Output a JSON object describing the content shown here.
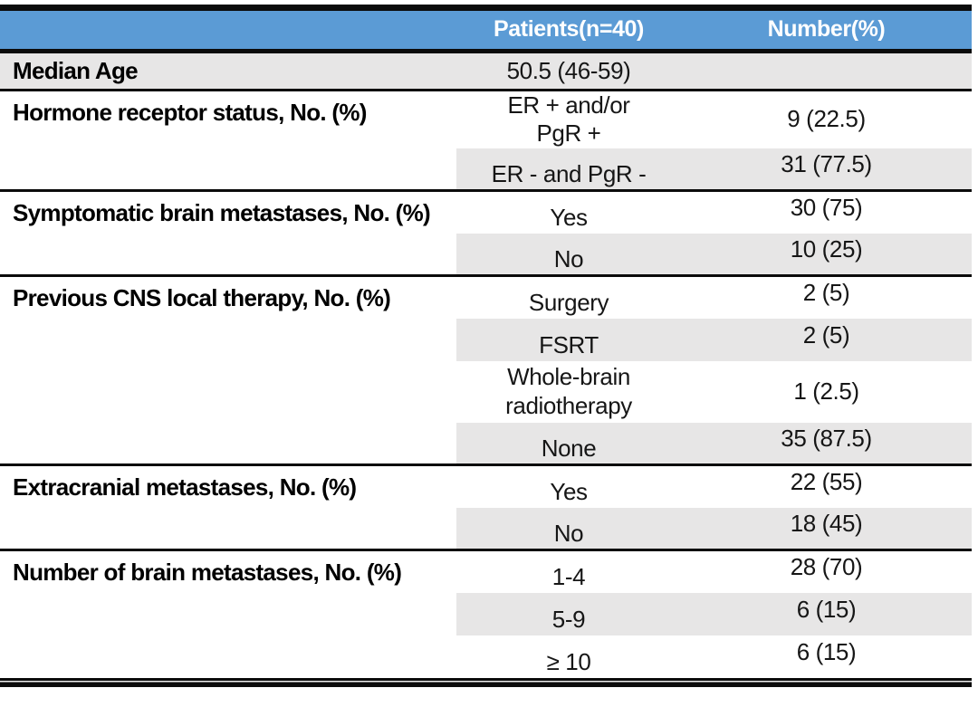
{
  "header": {
    "spacer": "",
    "patients": "Patients(n=40)",
    "number": "Number(%)"
  },
  "sections": [
    {
      "label": "Median Age",
      "rows": [
        {
          "value": "50.5 (46-59)",
          "number": ""
        }
      ]
    },
    {
      "label": "Hormone receptor status, No. (%)",
      "rows": [
        {
          "value": "ER + and/or\nPgR +",
          "number": "9 (22.5)"
        },
        {
          "value": "ER - and PgR -",
          "number": "31 (77.5)"
        }
      ]
    },
    {
      "label": "Symptomatic brain metastases, No. (%)",
      "rows": [
        {
          "value": "Yes",
          "number": "30 (75)"
        },
        {
          "value": "No",
          "number": "10 (25)"
        }
      ]
    },
    {
      "label": "Previous CNS local therapy, No. (%)",
      "rows": [
        {
          "value": "Surgery",
          "number": "2 (5)"
        },
        {
          "value": "FSRT",
          "number": "2 (5)"
        },
        {
          "value": "Whole-brain\nradiotherapy",
          "number": "1 (2.5)"
        },
        {
          "value": "None",
          "number": "35 (87.5)"
        }
      ]
    },
    {
      "label": "Extracranial metastases, No. (%)",
      "rows": [
        {
          "value": "Yes",
          "number": "22 (55)"
        },
        {
          "value": "No",
          "number": "18 (45)"
        }
      ]
    },
    {
      "label": "Number of brain metastases, No. (%)",
      "rows": [
        {
          "value": "1-4",
          "number": "28 (70)"
        },
        {
          "value": "5-9",
          "number": "6 (15)"
        },
        {
          "value": "≥ 10",
          "number": "6 (15)"
        }
      ]
    }
  ],
  "colors": {
    "header_bg": "#5B9BD5",
    "header_text": "#FFFFFF",
    "stripe_bg": "#E7E6E6",
    "rule": "#0B0B0B"
  }
}
